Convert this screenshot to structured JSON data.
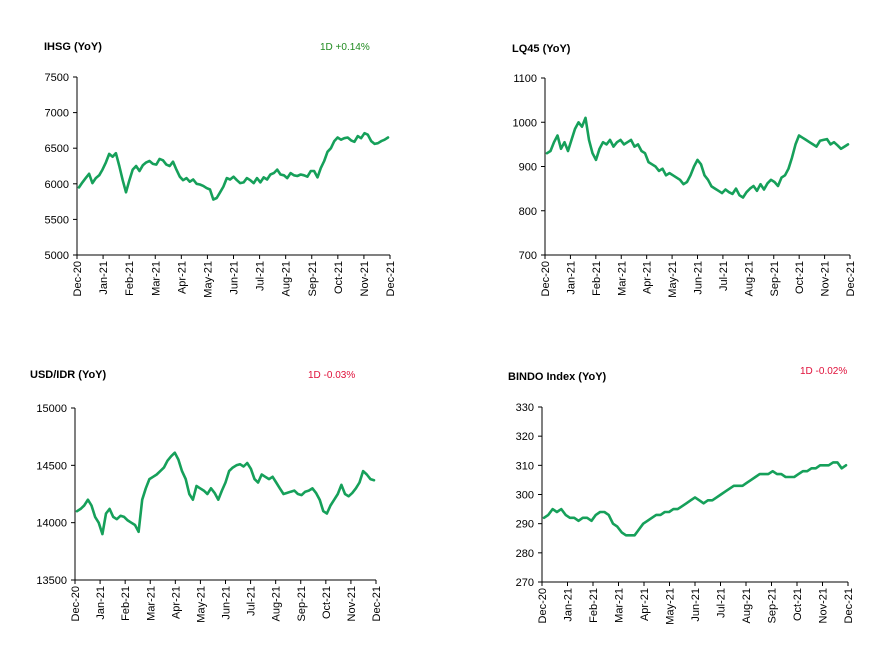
{
  "colors": {
    "line": "#16a05a",
    "positive": "#1f8a1f",
    "negative": "#e0103a"
  },
  "chart_data": [
    {
      "type": "line",
      "title": "IHSG (YoY)",
      "change_label": "1D +0.14%",
      "change_color": "positive",
      "ylim": [
        5000,
        7500
      ],
      "yticks": [
        5000,
        5500,
        6000,
        6500,
        7000,
        7500
      ],
      "ytick_labels": [
        "5000",
        "5500",
        "6000",
        "6500",
        "7000",
        "7500"
      ],
      "xticks": [
        "Dec-20",
        "Jan-21",
        "Feb-21",
        "Mar-21",
        "Apr-21",
        "May-21",
        "Jun-21",
        "Jul-21",
        "Aug-21",
        "Sep-21",
        "Oct-21",
        "Nov-21",
        "Dec-21"
      ],
      "series": [
        {
          "values": [
            5950,
            6020,
            6080,
            6140,
            6010,
            6080,
            6120,
            6200,
            6300,
            6420,
            6380,
            6430,
            6250,
            6050,
            5880,
            6050,
            6200,
            6250,
            6180,
            6260,
            6300,
            6320,
            6280,
            6270,
            6350,
            6330,
            6270,
            6250,
            6310,
            6200,
            6100,
            6050,
            6080,
            6030,
            6060,
            6000,
            5990,
            5970,
            5940,
            5920,
            5780,
            5800,
            5880,
            5960,
            6080,
            6060,
            6100,
            6050,
            6010,
            6020,
            6080,
            6050,
            6010,
            6080,
            6020,
            6090,
            6060,
            6130,
            6150,
            6200,
            6130,
            6120,
            6080,
            6150,
            6120,
            6110,
            6130,
            6120,
            6100,
            6180,
            6180,
            6090,
            6220,
            6320,
            6450,
            6500,
            6600,
            6650,
            6620,
            6640,
            6650,
            6610,
            6590,
            6670,
            6640,
            6710,
            6690,
            6600,
            6560,
            6570,
            6600,
            6620,
            6650
          ]
        }
      ]
    },
    {
      "type": "line",
      "title": "LQ45 (YoY)",
      "change_label": "",
      "ylim": [
        700,
        1100
      ],
      "yticks": [
        700,
        800,
        900,
        1000,
        1100
      ],
      "ytick_labels": [
        "700",
        "800",
        "900",
        "1000",
        "1100"
      ],
      "xticks": [
        "Dec-20",
        "Jan-21",
        "Feb-21",
        "Mar-21",
        "Apr-21",
        "May-21",
        "Jun-21",
        "Jul-21",
        "Aug-21",
        "Sep-21",
        "Oct-21",
        "Nov-21",
        "Dec-21"
      ],
      "series": [
        {
          "values": [
            930,
            935,
            955,
            970,
            940,
            955,
            935,
            960,
            985,
            1000,
            990,
            1010,
            960,
            930,
            915,
            940,
            955,
            950,
            960,
            945,
            955,
            960,
            950,
            955,
            960,
            945,
            950,
            935,
            930,
            910,
            905,
            900,
            890,
            895,
            880,
            885,
            880,
            875,
            870,
            860,
            865,
            880,
            900,
            915,
            905,
            880,
            870,
            855,
            850,
            845,
            840,
            848,
            842,
            838,
            850,
            835,
            830,
            842,
            850,
            856,
            845,
            860,
            848,
            862,
            870,
            865,
            856,
            875,
            880,
            895,
            920,
            950,
            970,
            965,
            960,
            955,
            950,
            945,
            958,
            960,
            962,
            950,
            955,
            948,
            940,
            945,
            950
          ]
        }
      ]
    },
    {
      "type": "line",
      "title": "USD/IDR  (YoY)",
      "change_label": "1D -0.03%",
      "change_color": "negative",
      "ylim": [
        13500,
        15000
      ],
      "yticks": [
        13500,
        14000,
        14500,
        15000
      ],
      "ytick_labels": [
        "13500",
        "14000",
        "14500",
        "15000"
      ],
      "xticks": [
        "Dec-20",
        "Jan-21",
        "Feb-21",
        "Mar-21",
        "Apr-21",
        "May-21",
        "Jun-21",
        "Jul-21",
        "Aug-21",
        "Sep-21",
        "Oct-21",
        "Nov-21",
        "Dec-21"
      ],
      "series": [
        {
          "values": [
            14100,
            14120,
            14150,
            14200,
            14150,
            14050,
            14000,
            13900,
            14080,
            14120,
            14050,
            14030,
            14060,
            14050,
            14020,
            14000,
            13980,
            13920,
            14200,
            14300,
            14380,
            14400,
            14420,
            14450,
            14480,
            14540,
            14580,
            14610,
            14550,
            14450,
            14380,
            14250,
            14200,
            14320,
            14300,
            14280,
            14250,
            14300,
            14260,
            14200,
            14280,
            14350,
            14450,
            14480,
            14500,
            14510,
            14490,
            14520,
            14470,
            14380,
            14350,
            14420,
            14400,
            14380,
            14400,
            14350,
            14300,
            14250,
            14260,
            14270,
            14280,
            14250,
            14240,
            14270,
            14280,
            14300,
            14260,
            14200,
            14100,
            14080,
            14150,
            14200,
            14250,
            14330,
            14250,
            14230,
            14260,
            14300,
            14350,
            14450,
            14420,
            14380,
            14370
          ]
        }
      ]
    },
    {
      "type": "line",
      "title": "BINDO Index (YoY)",
      "change_label": "1D -0.02%",
      "change_color": "negative",
      "ylim": [
        270,
        330
      ],
      "yticks": [
        270,
        280,
        290,
        300,
        310,
        320,
        330
      ],
      "ytick_labels": [
        "270",
        "280",
        "290",
        "300",
        "310",
        "320",
        "330"
      ],
      "xticks": [
        "Dec-20",
        "Jan-21",
        "Feb-21",
        "Mar-21",
        "Apr-21",
        "May-21",
        "Jun-21",
        "Jul-21",
        "Aug-21",
        "Sep-21",
        "Oct-21",
        "Nov-21",
        "Dec-21"
      ],
      "series": [
        {
          "values": [
            292,
            293,
            295,
            294,
            295,
            293,
            292,
            292,
            291,
            292,
            292,
            291,
            293,
            294,
            294,
            293,
            290,
            289,
            287,
            286,
            286,
            286,
            288,
            290,
            291,
            292,
            293,
            293,
            294,
            294,
            295,
            295,
            296,
            297,
            298,
            299,
            298,
            297,
            298,
            298,
            299,
            300,
            301,
            302,
            303,
            303,
            303,
            304,
            305,
            306,
            307,
            307,
            307,
            308,
            307,
            307,
            306,
            306,
            306,
            307,
            308,
            308,
            309,
            309,
            310,
            310,
            310,
            311,
            311,
            309,
            310
          ]
        }
      ]
    }
  ]
}
